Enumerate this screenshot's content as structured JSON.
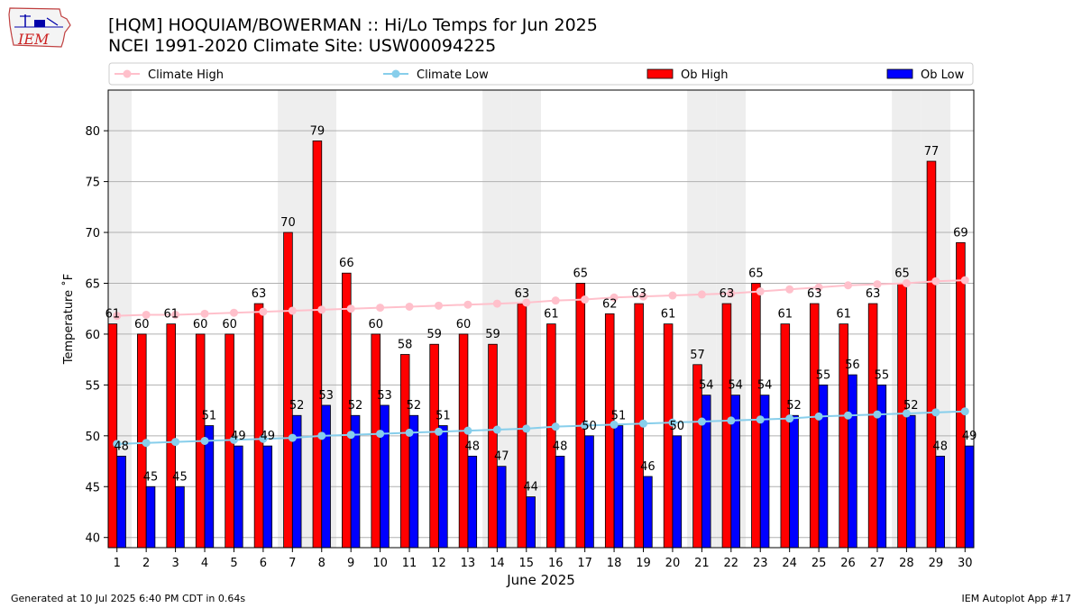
{
  "title": "[HQM] HOQUIAM/BOWERMAN :: Hi/Lo Temps for Jun 2025",
  "subtitle": "NCEI 1991-2020 Climate Site: USW00094225",
  "logo_text": "IEM",
  "footer_left": "Generated at 10 Jul 2025 6:40 PM CDT in 0.64s",
  "footer_right": "IEM Autoplot App #17",
  "colors": {
    "ob_high": "#ff0000",
    "ob_low": "#0000ff",
    "climate_high": "#ffc0cb",
    "climate_low": "#87ceeb",
    "weekend_shade": "#eeeeee",
    "grid": "#b0b0b0"
  },
  "chart_data": {
    "type": "bar",
    "xlabel": "June 2025",
    "ylabel": "Temperature ˚F",
    "ylim": [
      39,
      84
    ],
    "yticks": [
      40,
      45,
      50,
      55,
      60,
      65,
      70,
      75,
      80
    ],
    "grid": "horizontal",
    "legend_position": "top",
    "legend": [
      "Climate High",
      "Climate Low",
      "Ob High",
      "Ob Low"
    ],
    "categories": [
      "1",
      "2",
      "3",
      "4",
      "5",
      "6",
      "7",
      "8",
      "9",
      "10",
      "11",
      "12",
      "13",
      "14",
      "15",
      "16",
      "17",
      "18",
      "19",
      "20",
      "21",
      "22",
      "23",
      "24",
      "25",
      "26",
      "27",
      "28",
      "29",
      "30"
    ],
    "shaded_days": [
      1,
      7,
      8,
      14,
      15,
      21,
      22,
      28,
      29
    ],
    "series": [
      {
        "name": "Ob High",
        "kind": "bar",
        "values": [
          61,
          60,
          61,
          60,
          60,
          63,
          70,
          79,
          66,
          60,
          58,
          59,
          60,
          59,
          63,
          61,
          65,
          62,
          63,
          61,
          57,
          63,
          65,
          61,
          63,
          61,
          63,
          65,
          77,
          69
        ]
      },
      {
        "name": "Ob Low",
        "kind": "bar",
        "values": [
          48,
          45,
          45,
          51,
          49,
          49,
          52,
          53,
          52,
          53,
          52,
          51,
          48,
          47,
          44,
          48,
          50,
          51,
          46,
          50,
          54,
          54,
          54,
          52,
          55,
          56,
          55,
          52,
          48,
          49
        ]
      },
      {
        "name": "Climate High",
        "kind": "line",
        "values": [
          61.8,
          61.9,
          61.9,
          62.0,
          62.1,
          62.2,
          62.3,
          62.4,
          62.5,
          62.6,
          62.7,
          62.8,
          62.9,
          63.0,
          63.1,
          63.3,
          63.4,
          63.6,
          63.7,
          63.8,
          63.9,
          64.0,
          64.2,
          64.4,
          64.6,
          64.8,
          64.9,
          65.0,
          65.2,
          65.3
        ]
      },
      {
        "name": "Climate Low",
        "kind": "line",
        "values": [
          49.2,
          49.3,
          49.4,
          49.5,
          49.6,
          49.7,
          49.8,
          50.0,
          50.1,
          50.2,
          50.3,
          50.4,
          50.5,
          50.6,
          50.7,
          50.9,
          51.0,
          51.1,
          51.2,
          51.3,
          51.4,
          51.5,
          51.6,
          51.7,
          51.9,
          52.0,
          52.1,
          52.2,
          52.3,
          52.4
        ]
      }
    ]
  }
}
